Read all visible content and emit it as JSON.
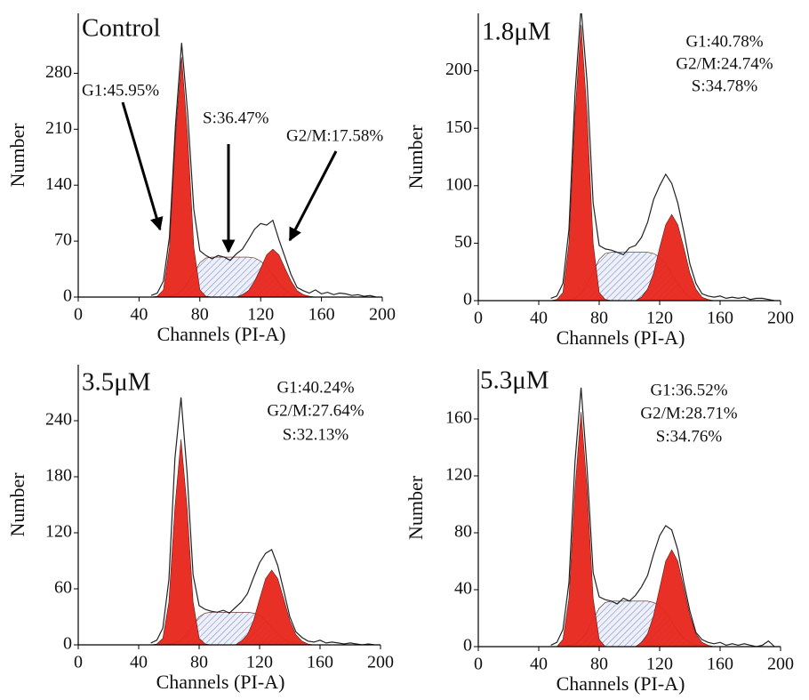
{
  "chart_data": [
    {
      "type": "area",
      "title": "Control",
      "annotations": [
        "G1:45.95%",
        "S:36.47%",
        "G2/M:17.58%"
      ],
      "x_label": "Channels (PI-A)",
      "y_label": "Number",
      "x": [
        48,
        52,
        56,
        60,
        64,
        68,
        72,
        76,
        80,
        84,
        88,
        92,
        96,
        100,
        104,
        108,
        112,
        116,
        120,
        124,
        128,
        132,
        136,
        140,
        144,
        148,
        152,
        156,
        160,
        164,
        168,
        172,
        176,
        180,
        184,
        188,
        192,
        196
      ],
      "series": [
        {
          "color": "#8090c8",
          "fill": "hatch",
          "values": [
            0,
            0,
            0,
            1,
            3,
            8,
            18,
            30,
            43,
            49,
            50,
            50,
            50,
            50,
            50,
            50,
            50,
            49,
            45,
            38,
            28,
            18,
            9,
            4,
            2,
            0,
            0,
            0,
            0,
            0,
            0,
            0,
            0,
            0,
            0,
            0,
            0,
            0
          ]
        },
        {
          "color": "#e8251b",
          "fill": "solid",
          "values": [
            0,
            1,
            9,
            62,
            202,
            300,
            202,
            62,
            9,
            1,
            0,
            0,
            0,
            0,
            0,
            0,
            0,
            0,
            0,
            0,
            0,
            0,
            0,
            0,
            0,
            0,
            0,
            0,
            0,
            0,
            0,
            0,
            0,
            0,
            0,
            0,
            0,
            0
          ]
        },
        {
          "color": "#e8251b",
          "fill": "solid",
          "values": [
            0,
            0,
            0,
            0,
            0,
            0,
            0,
            0,
            0,
            0,
            0,
            0,
            0,
            0,
            0,
            3,
            8,
            20,
            36,
            53,
            60,
            53,
            36,
            20,
            8,
            3,
            1,
            0,
            0,
            0,
            0,
            0,
            0,
            0,
            0,
            0,
            0,
            0
          ]
        },
        {
          "color": "#222222",
          "fill": "none",
          "values": [
            2,
            5,
            20,
            75,
            215,
            318,
            230,
            110,
            58,
            52,
            48,
            52,
            50,
            46,
            54,
            60,
            72,
            85,
            92,
            90,
            96,
            72,
            50,
            28,
            12,
            8,
            5,
            9,
            4,
            6,
            3,
            5,
            4,
            2,
            3,
            1,
            2,
            0
          ]
        }
      ],
      "xlim": [
        0,
        200
      ],
      "xticks": [
        0,
        40,
        80,
        120,
        160,
        200
      ],
      "ylim": [
        0,
        355
      ],
      "yticks": [
        0,
        70,
        140,
        210,
        280
      ]
    },
    {
      "type": "area",
      "title": "1.8μM",
      "annotations": [
        "G1:40.78%",
        "G2/M:24.74%",
        "S:34.78%"
      ],
      "x_label": "Channels (PI-A)",
      "y_label": "Number",
      "x": [
        48,
        52,
        56,
        60,
        64,
        68,
        72,
        76,
        80,
        84,
        88,
        92,
        96,
        100,
        104,
        108,
        112,
        116,
        120,
        124,
        128,
        132,
        136,
        140,
        144,
        148,
        152,
        156,
        160,
        164,
        168,
        172,
        176,
        180,
        184,
        188,
        192,
        196
      ],
      "series": [
        {
          "color": "#8090c8",
          "fill": "hatch",
          "values": [
            0,
            0,
            0,
            1,
            2,
            6,
            15,
            25,
            36,
            41,
            42,
            42,
            42,
            42,
            42,
            42,
            42,
            41,
            38,
            32,
            23,
            15,
            8,
            3,
            1,
            0,
            0,
            0,
            0,
            0,
            0,
            0,
            0,
            0,
            0,
            0,
            0,
            0
          ]
        },
        {
          "color": "#e8251b",
          "fill": "solid",
          "values": [
            0,
            1,
            7,
            50,
            162,
            240,
            162,
            50,
            7,
            1,
            0,
            0,
            0,
            0,
            0,
            0,
            0,
            0,
            0,
            0,
            0,
            0,
            0,
            0,
            0,
            0,
            0,
            0,
            0,
            0,
            0,
            0,
            0,
            0,
            0,
            0,
            0,
            0
          ]
        },
        {
          "color": "#e8251b",
          "fill": "solid",
          "values": [
            0,
            0,
            0,
            0,
            0,
            0,
            0,
            0,
            0,
            0,
            0,
            0,
            0,
            0,
            0,
            3,
            10,
            24,
            46,
            66,
            75,
            66,
            46,
            24,
            10,
            3,
            1,
            0,
            0,
            0,
            0,
            0,
            0,
            0,
            0,
            0,
            0,
            0
          ]
        },
        {
          "color": "#222222",
          "fill": "none",
          "values": [
            2,
            4,
            15,
            62,
            180,
            255,
            190,
            85,
            48,
            45,
            44,
            42,
            40,
            46,
            48,
            55,
            68,
            88,
            100,
            110,
            102,
            85,
            60,
            32,
            15,
            6,
            4,
            3,
            4,
            2,
            3,
            2,
            3,
            1,
            2,
            2,
            1,
            0
          ]
        }
      ],
      "xlim": [
        0,
        200
      ],
      "xticks": [
        0,
        40,
        80,
        120,
        160,
        200
      ],
      "ylim": [
        0,
        250
      ],
      "yticks": [
        0,
        50,
        100,
        150,
        200
      ]
    },
    {
      "type": "area",
      "title": "3.5μM",
      "annotations": [
        "G1:40.24%",
        "G2/M:27.64%",
        "S:32.13%"
      ],
      "x_label": "Channels (PI-A)",
      "y_label": "Number",
      "x": [
        48,
        52,
        56,
        60,
        64,
        68,
        72,
        76,
        80,
        84,
        88,
        92,
        96,
        100,
        104,
        108,
        112,
        116,
        120,
        124,
        128,
        132,
        136,
        140,
        144,
        148,
        152,
        156,
        160,
        164,
        168,
        172,
        176,
        180,
        184,
        188,
        192,
        196
      ],
      "series": [
        {
          "color": "#8090c8",
          "fill": "hatch",
          "values": [
            0,
            0,
            0,
            1,
            2,
            5,
            12,
            21,
            30,
            34,
            35,
            35,
            35,
            35,
            35,
            35,
            35,
            34,
            32,
            26,
            19,
            12,
            6,
            3,
            1,
            0,
            0,
            0,
            0,
            0,
            0,
            0,
            0,
            0,
            0,
            0,
            0,
            0
          ]
        },
        {
          "color": "#e8251b",
          "fill": "solid",
          "values": [
            0,
            1,
            7,
            46,
            148,
            220,
            148,
            46,
            7,
            1,
            0,
            0,
            0,
            0,
            0,
            0,
            0,
            0,
            0,
            0,
            0,
            0,
            0,
            0,
            0,
            0,
            0,
            0,
            0,
            0,
            0,
            0,
            0,
            0,
            0,
            0,
            0,
            0
          ]
        },
        {
          "color": "#e8251b",
          "fill": "solid",
          "values": [
            0,
            0,
            0,
            0,
            0,
            0,
            0,
            0,
            0,
            0,
            0,
            0,
            0,
            0,
            0,
            4,
            11,
            26,
            49,
            71,
            80,
            71,
            49,
            26,
            11,
            4,
            1,
            0,
            0,
            0,
            0,
            0,
            0,
            0,
            0,
            0,
            0,
            0
          ]
        },
        {
          "color": "#222222",
          "fill": "none",
          "values": [
            2,
            5,
            18,
            70,
            200,
            265,
            185,
            75,
            42,
            38,
            36,
            35,
            37,
            34,
            40,
            46,
            55,
            72,
            88,
            98,
            102,
            85,
            58,
            30,
            14,
            8,
            4,
            3,
            5,
            2,
            3,
            2,
            1,
            2,
            1,
            0,
            1,
            0
          ]
        }
      ],
      "xlim": [
        0,
        200
      ],
      "xticks": [
        0,
        40,
        80,
        120,
        160,
        200
      ],
      "ylim": [
        0,
        300
      ],
      "yticks": [
        0,
        60,
        120,
        180,
        240
      ]
    },
    {
      "type": "area",
      "title": "5.3μM",
      "annotations": [
        "G1:36.52%",
        "G2/M:28.71%",
        "S:34.76%"
      ],
      "x_label": "Channels (PI-A)",
      "y_label": "Number",
      "x": [
        48,
        52,
        56,
        60,
        64,
        68,
        72,
        76,
        80,
        84,
        88,
        92,
        96,
        100,
        104,
        108,
        112,
        116,
        120,
        124,
        128,
        132,
        136,
        140,
        144,
        148,
        152,
        156,
        160,
        164,
        168,
        172,
        176,
        180,
        184,
        188,
        192,
        196
      ],
      "series": [
        {
          "color": "#8090c8",
          "fill": "hatch",
          "values": [
            0,
            0,
            0,
            1,
            2,
            5,
            11,
            19,
            27,
            31,
            32,
            32,
            32,
            32,
            32,
            32,
            32,
            31,
            29,
            24,
            18,
            11,
            6,
            3,
            1,
            0,
            0,
            0,
            0,
            0,
            0,
            0,
            0,
            0,
            0,
            0,
            0,
            0
          ]
        },
        {
          "color": "#e8251b",
          "fill": "solid",
          "values": [
            0,
            0,
            5,
            34,
            111,
            165,
            111,
            34,
            5,
            0,
            0,
            0,
            0,
            0,
            0,
            0,
            0,
            0,
            0,
            0,
            0,
            0,
            0,
            0,
            0,
            0,
            0,
            0,
            0,
            0,
            0,
            0,
            0,
            0,
            0,
            0,
            0,
            0
          ]
        },
        {
          "color": "#e8251b",
          "fill": "solid",
          "values": [
            0,
            0,
            0,
            0,
            0,
            0,
            0,
            0,
            0,
            0,
            0,
            0,
            0,
            0,
            0,
            3,
            9,
            22,
            41,
            60,
            68,
            60,
            41,
            22,
            9,
            3,
            1,
            0,
            0,
            0,
            0,
            0,
            0,
            0,
            0,
            0,
            0,
            0
          ]
        },
        {
          "color": "#222222",
          "fill": "none",
          "values": [
            1,
            3,
            12,
            45,
            130,
            182,
            125,
            52,
            35,
            33,
            32,
            30,
            34,
            32,
            36,
            42,
            50,
            65,
            78,
            85,
            82,
            68,
            45,
            25,
            10,
            5,
            3,
            2,
            3,
            1,
            2,
            1,
            2,
            1,
            0,
            1,
            4,
            0
          ]
        }
      ],
      "xlim": [
        0,
        200
      ],
      "xticks": [
        0,
        40,
        80,
        120,
        160,
        200
      ],
      "ylim": [
        0,
        195
      ],
      "yticks": [
        0,
        40,
        80,
        120,
        160
      ]
    }
  ]
}
